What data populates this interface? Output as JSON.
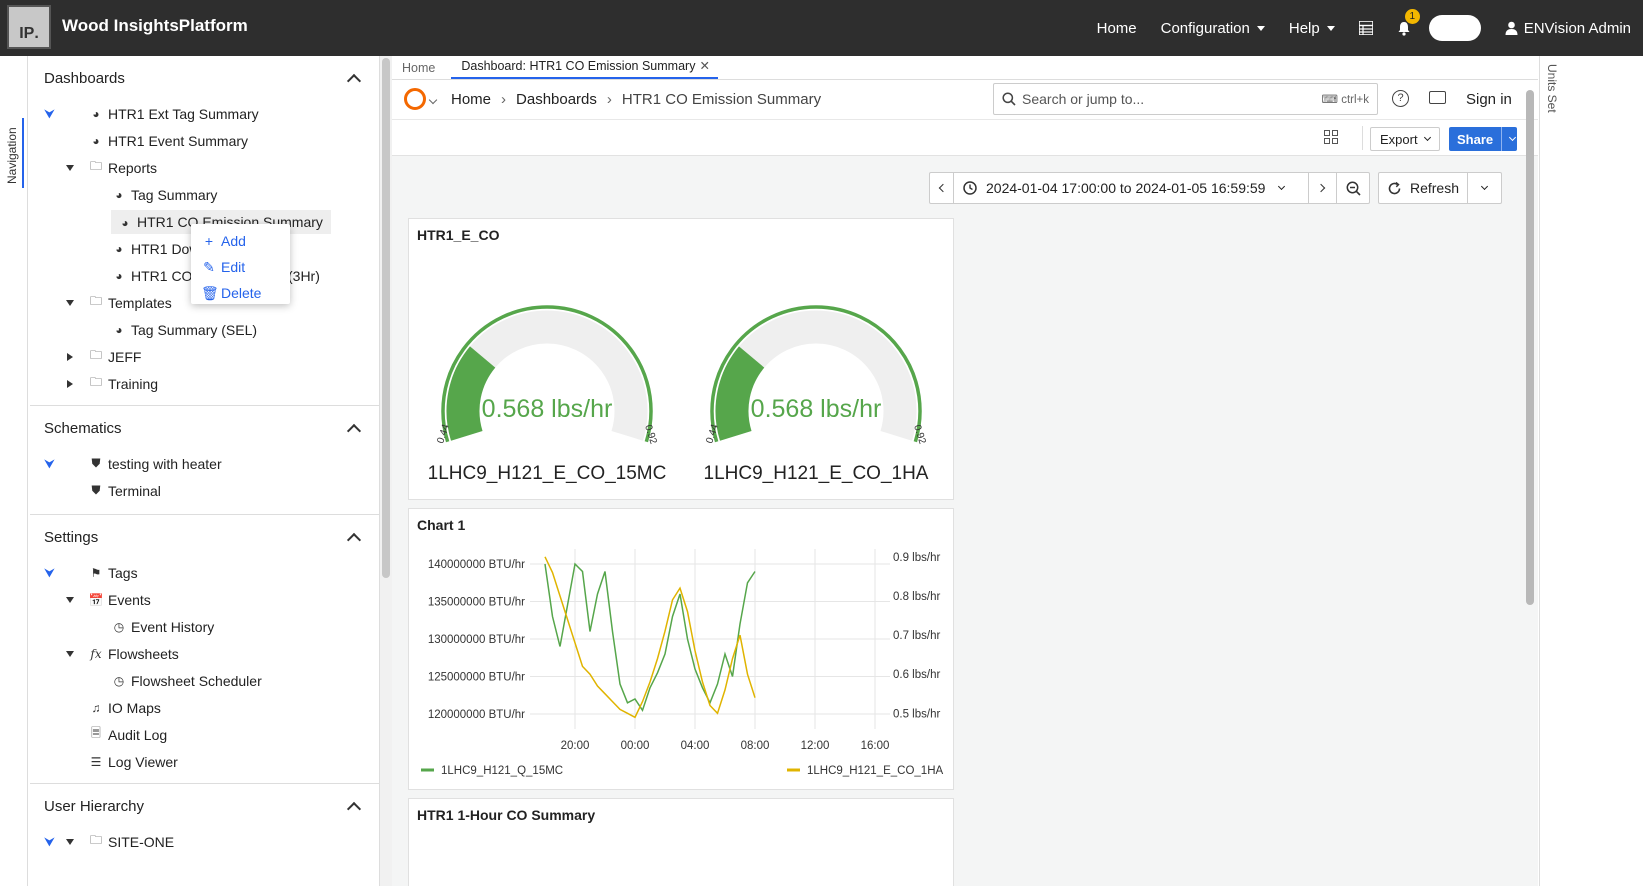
{
  "app": {
    "logo_text": "IP",
    "title": "Wood InsightsPlatform",
    "nav": {
      "home": "Home",
      "configuration": "Configuration",
      "help": "Help",
      "notification_count": "1",
      "user": "ENVision Admin"
    },
    "left_tab": "Navigation",
    "right_tab": "Units Set"
  },
  "sidebar": {
    "dashboards": {
      "title": "Dashboards",
      "items": [
        "HTR1 Ext Tag Summary",
        "HTR1 Event Summary",
        "Reports",
        "Tag Summary",
        "HTR1 CO Emission Summary",
        "HTR1 Dow",
        "y",
        "HTR1 CO",
        "(3Hr)",
        "Templates",
        "Tag Summary (SEL)",
        "JEFF",
        "Training"
      ]
    },
    "schematics": {
      "title": "Schematics",
      "items": [
        "testing with heater",
        "Terminal"
      ]
    },
    "settings": {
      "title": "Settings",
      "items": [
        "Tags",
        "Events",
        "Event History",
        "Flowsheets",
        "Flowsheet Scheduler",
        "IO Maps",
        "Audit Log",
        "Log Viewer"
      ]
    },
    "user_hierarchy": {
      "title": "User Hierarchy",
      "items": [
        "SITE-ONE"
      ]
    }
  },
  "context_menu": {
    "add": "Add",
    "edit": "Edit",
    "delete": "Delete"
  },
  "tabs": {
    "home": "Home",
    "active": "Dashboard: HTR1 CO Emission Summary",
    "close": "✕"
  },
  "grafana": {
    "breadcrumb": [
      "Home",
      "Dashboards",
      "HTR1 CO Emission Summary"
    ],
    "search_placeholder": "Search or jump to...",
    "search_shortcut": "ctrl+k",
    "sign_in": "Sign in",
    "export": "Export",
    "share": "Share",
    "time_range": "2024-01-04 17:00:00 to 2024-01-05 16:59:59",
    "refresh": "Refresh"
  },
  "gauge_panel": {
    "title": "HTR1_E_CO",
    "gauges": [
      {
        "value": 0.568,
        "display": "0.568 lbs/hr",
        "min": 0.44,
        "max": 0.92,
        "min_label": "0.44",
        "max_label": "0.92",
        "name": "1LHC9_H121_E_CO_15MC"
      },
      {
        "value": 0.568,
        "display": "0.568 lbs/hr",
        "min": 0.44,
        "max": 0.92,
        "min_label": "0.44",
        "max_label": "0.92",
        "name": "1LHC9_H121_E_CO_1HA"
      }
    ]
  },
  "chart_panel": {
    "title": "Chart 1"
  },
  "summary_panel": {
    "title": "HTR1 1-Hour CO Summary"
  },
  "colors": {
    "green": "#56a64b",
    "yellow": "#e0b400",
    "blue": "#2a6fdb"
  },
  "chart_data": {
    "type": "line",
    "title": "Chart 1",
    "x": [
      "18:00",
      "18:30",
      "19:00",
      "19:30",
      "20:00",
      "20:30",
      "21:00",
      "21:30",
      "22:00",
      "22:30",
      "23:00",
      "23:30",
      "00:00",
      "00:30",
      "01:00",
      "01:30",
      "02:00",
      "02:30",
      "03:00",
      "03:30",
      "04:00",
      "04:30",
      "05:00",
      "05:30",
      "06:00",
      "06:30",
      "07:00",
      "07:30",
      "08:00"
    ],
    "x_ticks": [
      "20:00",
      "00:00",
      "04:00",
      "08:00",
      "12:00",
      "16:00"
    ],
    "x_range_hours": [
      17,
      41
    ],
    "y_left": {
      "ticks": [
        "140000000 BTU/hr",
        "135000000 BTU/hr",
        "130000000 BTU/hr",
        "125000000 BTU/hr",
        "120000000 BTU/hr"
      ],
      "range": [
        118000000,
        142000000
      ]
    },
    "y_right": {
      "ticks": [
        "0.9 lbs/hr",
        "0.8 lbs/hr",
        "0.7 lbs/hr",
        "0.6 lbs/hr",
        "0.5 lbs/hr"
      ],
      "range": [
        0.46,
        0.92
      ]
    },
    "series": [
      {
        "name": "1LHC9_H121_Q_15MC",
        "axis": "left",
        "color": "#56a64b",
        "values": [
          140000000,
          133000000,
          129000000,
          134500000,
          140000000,
          139000000,
          131000000,
          136000000,
          139000000,
          131000000,
          124000000,
          121500000,
          122000000,
          120500000,
          123500000,
          125500000,
          128000000,
          133000000,
          136000000,
          130000000,
          126000000,
          123500000,
          121500000,
          124000000,
          128000000,
          125000000,
          132000000,
          137500000,
          139000000
        ]
      },
      {
        "name": "1LHC9_H121_E_CO_1HA",
        "axis": "right",
        "color": "#e0b400",
        "values": [
          0.9,
          0.86,
          0.8,
          0.74,
          0.68,
          0.62,
          0.6,
          0.57,
          0.55,
          0.53,
          0.51,
          0.5,
          0.49,
          0.53,
          0.58,
          0.64,
          0.71,
          0.79,
          0.82,
          0.76,
          0.66,
          0.58,
          0.52,
          0.5,
          0.56,
          0.64,
          0.7,
          0.6,
          0.54
        ]
      }
    ]
  }
}
